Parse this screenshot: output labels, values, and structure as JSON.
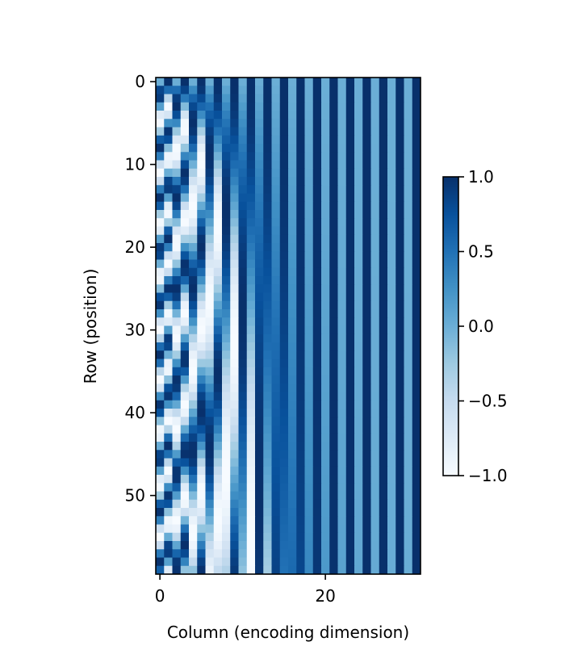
{
  "chart_data": {
    "type": "heatmap",
    "title": "",
    "xlabel": "Column (encoding dimension)",
    "ylabel": "Row (position)",
    "colormap": "Blues",
    "colormap_stops": [
      "#f7fbff",
      "#deebf7",
      "#c6dbef",
      "#9ecae1",
      "#6baed6",
      "#4292c6",
      "#2171b5",
      "#08519c",
      "#08306b"
    ],
    "rows": 60,
    "columns": 32,
    "value_formula": "even column 2i: sin(row / 10000^(2i/32)); odd column 2i+1: cos(row / 10000^(2i/32))",
    "xlim": [
      -0.5,
      31.5
    ],
    "ylim": [
      59.5,
      -0.5
    ],
    "x_ticks": [
      0,
      20
    ],
    "x_tick_labels": [
      "0",
      "20"
    ],
    "y_ticks": [
      0,
      10,
      20,
      30,
      40,
      50
    ],
    "y_tick_labels": [
      "0",
      "10",
      "20",
      "30",
      "40",
      "50"
    ],
    "colorbar": {
      "min": -1.0,
      "max": 1.0,
      "ticks": [
        1.0,
        0.5,
        0.0,
        -0.5,
        -1.0
      ],
      "tick_labels": [
        "1.0",
        "0.5",
        "0.0",
        "−0.5",
        "−1.0"
      ]
    }
  }
}
